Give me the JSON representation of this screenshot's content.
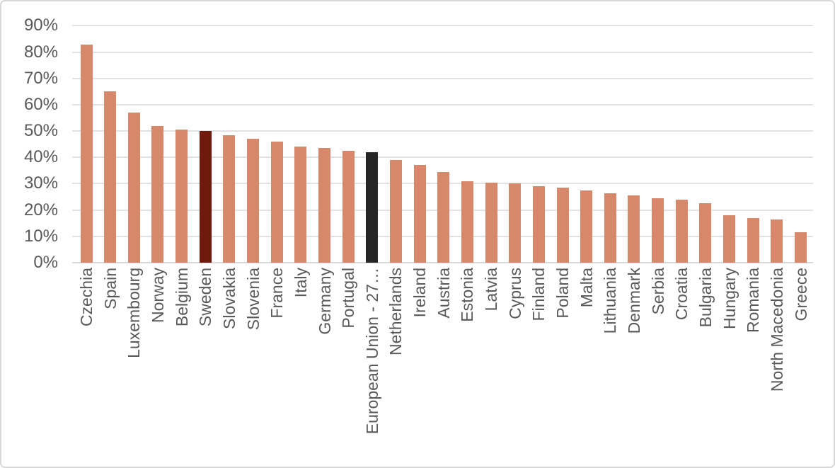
{
  "window": {
    "background_color": "#ffffff",
    "border_color": "#d9d9d9"
  },
  "chart_data": {
    "type": "bar",
    "title": "",
    "xlabel": "",
    "ylabel": "",
    "unit": "%",
    "ylim": [
      0,
      90
    ],
    "ytick_step": 10,
    "ytick_labels": [
      "0%",
      "10%",
      "20%",
      "30%",
      "40%",
      "50%",
      "60%",
      "70%",
      "80%",
      "90%"
    ],
    "grid": true,
    "legend": false,
    "categories": [
      "Czechia",
      "Spain",
      "Luxembourg",
      "Norway",
      "Belgium",
      "Sweden",
      "Slovakia",
      "Slovenia",
      "France",
      "Italy",
      "Germany",
      "Portugal",
      "European Union - 27…",
      "Netherlands",
      "Ireland",
      "Austria",
      "Estonia",
      "Latvia",
      "Cyprus",
      "Finland",
      "Poland",
      "Malta",
      "Lithuania",
      "Denmark",
      "Serbia",
      "Croatia",
      "Bulgaria",
      "Hungary",
      "Romania",
      "North Macedonia",
      "Greece"
    ],
    "values": [
      83,
      65,
      57,
      52,
      50.5,
      50,
      48.5,
      47,
      46,
      44,
      43.5,
      42.5,
      42,
      39,
      37,
      34.5,
      31,
      30.5,
      30,
      29,
      28.5,
      27.5,
      26.5,
      25.5,
      24.5,
      24,
      22.5,
      18,
      17,
      16.5,
      11.5
    ],
    "bar_color_default": "#d8886a",
    "highlighted_bars": [
      {
        "category": "Sweden",
        "color": "#6f1a0d"
      },
      {
        "category": "European Union - 27…",
        "color": "#262626"
      }
    ],
    "axis_text_color": "#595959",
    "gridline_color": "#e2e2e2",
    "baseline_color": "#d9d9d9"
  }
}
